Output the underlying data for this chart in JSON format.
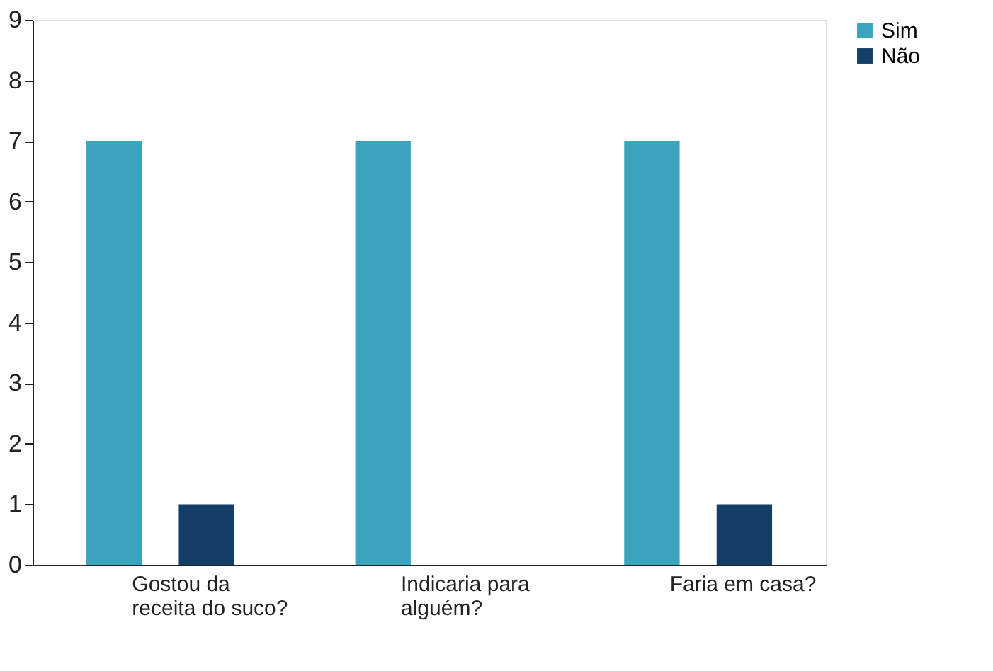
{
  "chart_data": {
    "type": "bar",
    "categories": [
      "Gostou da receita do suco?",
      "Indicaria para alguém?",
      "Faria em casa?"
    ],
    "series": [
      {
        "name": "Sim",
        "color": "#3ba3be",
        "values": [
          7,
          7,
          7
        ]
      },
      {
        "name": "Não",
        "color": "#133f66",
        "values": [
          1,
          0,
          1
        ]
      }
    ],
    "ylim": [
      0,
      9
    ],
    "yticks": [
      0,
      1,
      2,
      3,
      4,
      5,
      6,
      7,
      8,
      9
    ],
    "grid": false,
    "legend": "right"
  }
}
